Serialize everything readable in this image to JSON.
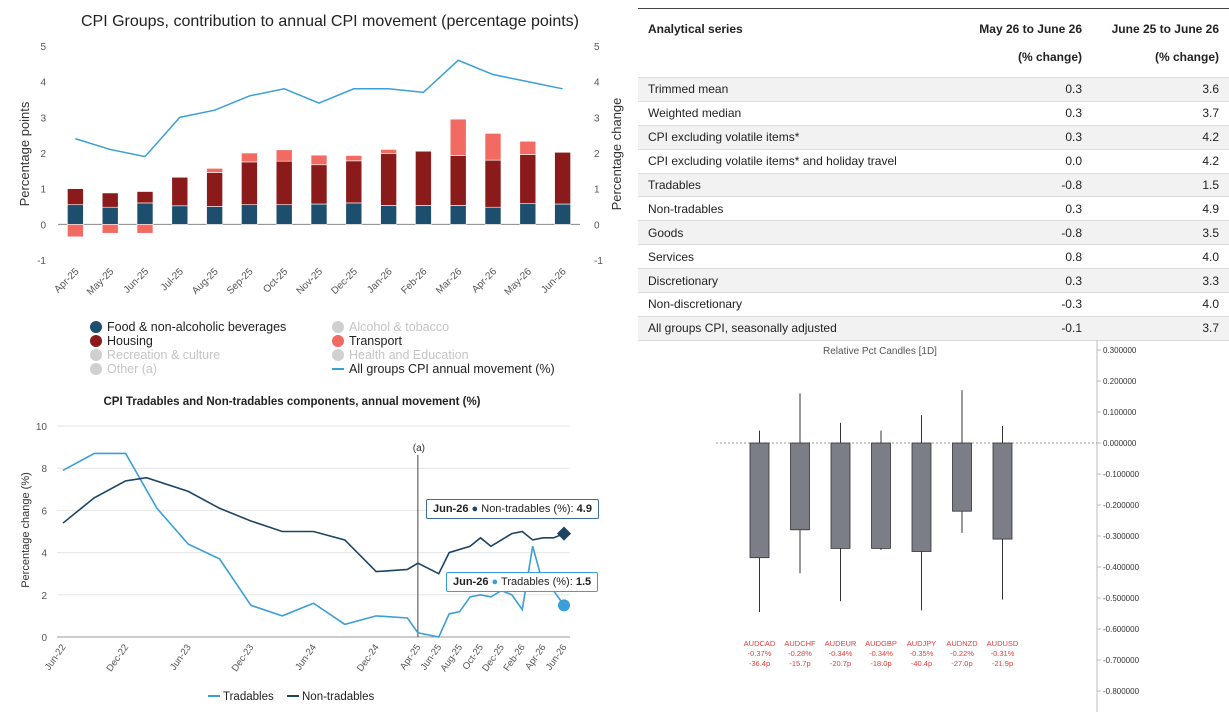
{
  "stacked_chart": {
    "title": "CPI Groups, contribution to annual CPI movement (percentage points)",
    "ylabel_left": "Percentage points",
    "ylabel_right": "Percentage change",
    "legend": {
      "food": "Food & non-alcoholic beverages",
      "alcohol": "Alcohol & tobacco",
      "housing": "Housing",
      "transport": "Transport",
      "recreation": "Recreation & culture",
      "health": "Health and Education",
      "other": "Other (a)",
      "line": "All groups CPI annual movement (%)"
    }
  },
  "line_chart": {
    "title": "CPI Tradables and Non-tradables components, annual movement (%)",
    "ylabel": "Percentage change (%)",
    "annotation": "(a)",
    "tooltip_nt": {
      "date": "Jun-26",
      "series": "Non-tradables (%):",
      "value": "4.9"
    },
    "tooltip_t": {
      "date": "Jun-26",
      "series": "Tradables (%):",
      "value": "1.5"
    },
    "legend_tradables": "Tradables",
    "legend_nontradables": "Non-tradables"
  },
  "table": {
    "headers": [
      "Analytical series",
      "May 26 to June 26",
      "(% change)",
      "June 25 to June 26",
      "(% change)"
    ],
    "rows": [
      [
        "Trimmed mean",
        "0.3",
        "3.6"
      ],
      [
        "Weighted median",
        "0.3",
        "3.7"
      ],
      [
        "CPI excluding volatile items*",
        "0.3",
        "4.2"
      ],
      [
        "CPI excluding volatile items* and holiday travel",
        "0.0",
        "4.2"
      ],
      [
        "Tradables",
        "-0.8",
        "1.5"
      ],
      [
        "Non-tradables",
        "0.3",
        "4.9"
      ],
      [
        "Goods",
        "-0.8",
        "3.5"
      ],
      [
        "Services",
        "0.8",
        "4.0"
      ],
      [
        "Discretionary",
        "0.3",
        "3.3"
      ],
      [
        "Non-discretionary",
        "-0.3",
        "4.0"
      ],
      [
        "All groups CPI, seasonally adjusted",
        "-0.1",
        "3.7"
      ]
    ]
  },
  "candle_chart": {
    "title": "Relative Pct Candles [1D]"
  },
  "chart_data": [
    {
      "type": "bar",
      "title": "CPI Groups, contribution to annual CPI movement (percentage points)",
      "xlabel": "",
      "ylabel": "Percentage points",
      "ylim": [
        -1,
        5
      ],
      "y2label": "Percentage change",
      "y2lim": [
        -1,
        5
      ],
      "stacked": true,
      "colors": {
        "food": "#1d4e6e",
        "housing": "#8b1a1a",
        "transport": "#f26b63",
        "line": "#3a9fd6"
      },
      "categories": [
        "Apr-25",
        "May-25",
        "Jun-25",
        "Jul-25",
        "Aug-25",
        "Sep-25",
        "Oct-25",
        "Nov-25",
        "Dec-25",
        "Jan-26",
        "Feb-26",
        "Mar-26",
        "Apr-26",
        "May-26",
        "Jun-26"
      ],
      "series": [
        {
          "name": "Food & non-alcoholic beverages",
          "values": [
            0.55,
            0.48,
            0.6,
            0.52,
            0.5,
            0.55,
            0.55,
            0.57,
            0.6,
            0.53,
            0.53,
            0.53,
            0.48,
            0.58,
            0.57
          ]
        },
        {
          "name": "Housing",
          "values": [
            0.45,
            0.4,
            0.32,
            0.8,
            0.95,
            1.2,
            1.22,
            1.1,
            1.18,
            1.45,
            1.52,
            1.4,
            1.32,
            1.38,
            1.45
          ]
        },
        {
          "name": "Transport",
          "values": [
            -0.35,
            -0.25,
            -0.25,
            0.0,
            0.12,
            0.25,
            0.32,
            0.27,
            0.15,
            0.12,
            0.0,
            1.02,
            0.75,
            0.37,
            0.0
          ]
        },
        {
          "name": "All groups CPI annual movement (%)",
          "type": "line",
          "axis": "right",
          "values": [
            2.4,
            2.1,
            1.9,
            3.0,
            3.2,
            3.6,
            3.8,
            3.4,
            3.8,
            3.8,
            3.7,
            4.6,
            4.2,
            4.0,
            3.8
          ]
        }
      ],
      "legend_position": "bottom"
    },
    {
      "type": "line",
      "title": "CPI Tradables and Non-tradables components, annual movement (%)",
      "xlabel": "",
      "ylabel": "Percentage change (%)",
      "ylim": [
        0,
        10
      ],
      "x_ticks": [
        "Jun-22",
        "Dec-22",
        "Jun-23",
        "Dec-23",
        "Jun-24",
        "Dec-24",
        "Apr-25",
        "Jun-25",
        "Aug-25",
        "Oct-25",
        "Dec-25",
        "Feb-26",
        "Apr-26",
        "Jun-26"
      ],
      "x_range": [
        "Jun-22",
        "Jun-26"
      ],
      "colors": {
        "tradables": "#3a9fd6",
        "nontradables": "#1d4463"
      },
      "series": [
        {
          "name": "Tradables",
          "points": [
            [
              "Jun-22",
              7.9
            ],
            [
              "Sep-22",
              8.7
            ],
            [
              "Dec-22",
              8.7
            ],
            [
              "Mar-23",
              6.1
            ],
            [
              "Jun-23",
              4.4
            ],
            [
              "Sep-23",
              3.7
            ],
            [
              "Dec-23",
              1.5
            ],
            [
              "Mar-24",
              1.0
            ],
            [
              "Jun-24",
              1.6
            ],
            [
              "Sep-24",
              0.6
            ],
            [
              "Dec-24",
              1.0
            ],
            [
              "Mar-25",
              0.9
            ],
            [
              "Apr-25",
              0.2
            ],
            [
              "May-25",
              0.1
            ],
            [
              "Jun-25",
              0.0
            ],
            [
              "Jul-25",
              1.1
            ],
            [
              "Aug-25",
              1.2
            ],
            [
              "Sep-25",
              1.9
            ],
            [
              "Oct-25",
              2.0
            ],
            [
              "Nov-25",
              1.9
            ],
            [
              "Dec-25",
              2.2
            ],
            [
              "Jan-26",
              2.0
            ],
            [
              "Feb-26",
              1.3
            ],
            [
              "Mar-26",
              4.3
            ],
            [
              "Apr-26",
              2.5
            ],
            [
              "May-26",
              2.2
            ],
            [
              "Jun-26",
              1.5
            ]
          ]
        },
        {
          "name": "Non-tradables",
          "points": [
            [
              "Jun-22",
              5.4
            ],
            [
              "Sep-22",
              6.6
            ],
            [
              "Dec-22",
              7.4
            ],
            [
              "Feb-23",
              7.55
            ],
            [
              "Jun-23",
              6.9
            ],
            [
              "Sep-23",
              6.1
            ],
            [
              "Dec-23",
              5.5
            ],
            [
              "Mar-24",
              5.0
            ],
            [
              "Jun-24",
              5.0
            ],
            [
              "Sep-24",
              4.6
            ],
            [
              "Dec-24",
              3.1
            ],
            [
              "Mar-25",
              3.2
            ],
            [
              "Apr-25",
              3.5
            ],
            [
              "Jun-25",
              3.0
            ],
            [
              "Jul-25",
              4.0
            ],
            [
              "Sep-25",
              4.3
            ],
            [
              "Oct-25",
              4.7
            ],
            [
              "Nov-25",
              4.3
            ],
            [
              "Dec-25",
              4.6
            ],
            [
              "Jan-26",
              4.9
            ],
            [
              "Feb-26",
              5.0
            ],
            [
              "Mar-26",
              4.6
            ],
            [
              "Apr-26",
              4.7
            ],
            [
              "May-26",
              4.7
            ],
            [
              "Jun-26",
              4.9
            ]
          ]
        }
      ],
      "annotations": [
        {
          "x": "Apr-25",
          "label": "(a)"
        }
      ],
      "legend_position": "bottom"
    },
    {
      "type": "table",
      "columns": [
        "Analytical series",
        "May 26 to June 26 (% change)",
        "June 25 to June 26 (% change)"
      ],
      "rows": [
        [
          "Trimmed mean",
          0.3,
          3.6
        ],
        [
          "Weighted median",
          0.3,
          3.7
        ],
        [
          "CPI excluding volatile items*",
          0.3,
          4.2
        ],
        [
          "CPI excluding volatile items* and holiday travel",
          0.0,
          4.2
        ],
        [
          "Tradables",
          -0.8,
          1.5
        ],
        [
          "Non-tradables",
          0.3,
          4.9
        ],
        [
          "Goods",
          -0.8,
          3.5
        ],
        [
          "Services",
          0.8,
          4.0
        ],
        [
          "Discretionary",
          0.3,
          3.3
        ],
        [
          "Non-discretionary",
          -0.3,
          4.0
        ],
        [
          "All groups CPI, seasonally adjusted",
          -0.1,
          3.7
        ]
      ]
    },
    {
      "type": "candlestick",
      "title": "Relative Pct Candles [1D]",
      "ylim": [
        -0.8,
        0.3
      ],
      "y_ticks": [
        "0.300000",
        "0.200000",
        "0.100000",
        "0.000000",
        "-0.100000",
        "-0.200000",
        "-0.300000",
        "-0.400000",
        "-0.500000",
        "-0.600000",
        "-0.700000",
        "-0.800000"
      ],
      "colors": {
        "body": "#7b7d87",
        "label": "#e83b3b",
        "zero_line": "#999999"
      },
      "candles": [
        {
          "name": "AUDCAD",
          "open": 0.0,
          "close": -0.37,
          "high": 0.04,
          "low": -0.545,
          "pct_label": "-0.37%",
          "pips_label": "-36.4p"
        },
        {
          "name": "AUDCHF",
          "open": 0.0,
          "close": -0.28,
          "high": 0.16,
          "low": -0.42,
          "pct_label": "-0.28%",
          "pips_label": "-15.7p"
        },
        {
          "name": "AUDEUR",
          "open": 0.0,
          "close": -0.34,
          "high": 0.065,
          "low": -0.51,
          "pct_label": "-0.34%",
          "pips_label": "-20.7p"
        },
        {
          "name": "AUDGBP",
          "open": 0.0,
          "close": -0.34,
          "high": 0.04,
          "low": -0.345,
          "pct_label": "-0.34%",
          "pips_label": "-18.0p"
        },
        {
          "name": "AUDJPY",
          "open": 0.0,
          "close": -0.35,
          "high": 0.09,
          "low": -0.54,
          "pct_label": "-0.35%",
          "pips_label": "-40.4p"
        },
        {
          "name": "AUDNZD",
          "open": 0.0,
          "close": -0.22,
          "high": 0.17,
          "low": -0.29,
          "pct_label": "-0.22%",
          "pips_label": "-27.0p"
        },
        {
          "name": "AUDUSD",
          "open": 0.0,
          "close": -0.31,
          "high": 0.055,
          "low": -0.505,
          "pct_label": "-0.31%",
          "pips_label": "-21.9p"
        }
      ]
    }
  ]
}
